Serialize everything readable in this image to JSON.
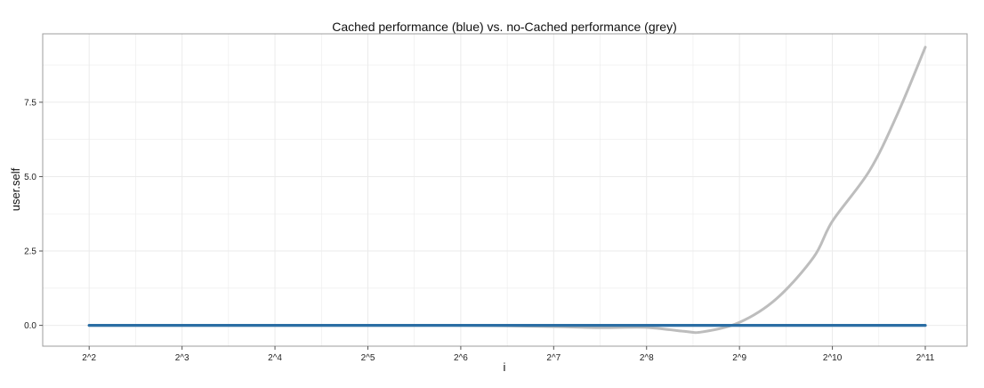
{
  "chart_data": {
    "type": "line",
    "title": "Cached performance (blue) vs. no-Cached performance (grey)",
    "xlabel": "i",
    "ylabel": "user.self",
    "x_scale": "log2",
    "x": [
      2,
      3,
      4,
      5,
      6,
      7,
      8,
      9,
      10,
      11
    ],
    "x_tick_labels": [
      "2^2",
      "2^3",
      "2^4",
      "2^5",
      "2^6",
      "2^7",
      "2^8",
      "2^9",
      "2^10",
      "2^11"
    ],
    "y_ticks": [
      0.0,
      2.5,
      5.0,
      7.5
    ],
    "y_tick_labels": [
      "0.0",
      "2.5",
      "5.0",
      "7.5"
    ],
    "xlim": [
      1.5,
      11.45
    ],
    "ylim": [
      -0.7,
      9.8
    ],
    "grid": true,
    "colors": {
      "cached": "#2b6ea4",
      "no_cached": "#bdbdbd",
      "grid": "#ebebeb",
      "panel_border": "#9c9c9c"
    },
    "series": [
      {
        "color": "#bdbdbd",
        "values": [
          0.0,
          0.0,
          0.0,
          0.0,
          0.0,
          0.0,
          0.0,
          0.0,
          0.0,
          -0.04,
          -0.08,
          -0.07,
          -0.2,
          -0.22,
          0.1,
          0.9,
          2.3,
          3.5,
          5.2,
          7.1,
          9.35
        ],
        "x": [
          2,
          2.5,
          3,
          3.5,
          4,
          4.5,
          5,
          5.5,
          6,
          7,
          7.5,
          8,
          8.4,
          8.6,
          9,
          9.4,
          9.8,
          10,
          10.4,
          10.7,
          11
        ]
      },
      {
        "color": "#2b6ea4",
        "values": [
          0.0,
          0.0,
          0.0,
          0.0,
          0.0,
          0.0,
          0.0,
          0.0,
          0.0,
          0.0
        ],
        "x": [
          2,
          3,
          4,
          5,
          6,
          7,
          8,
          9,
          10,
          11
        ]
      }
    ]
  }
}
